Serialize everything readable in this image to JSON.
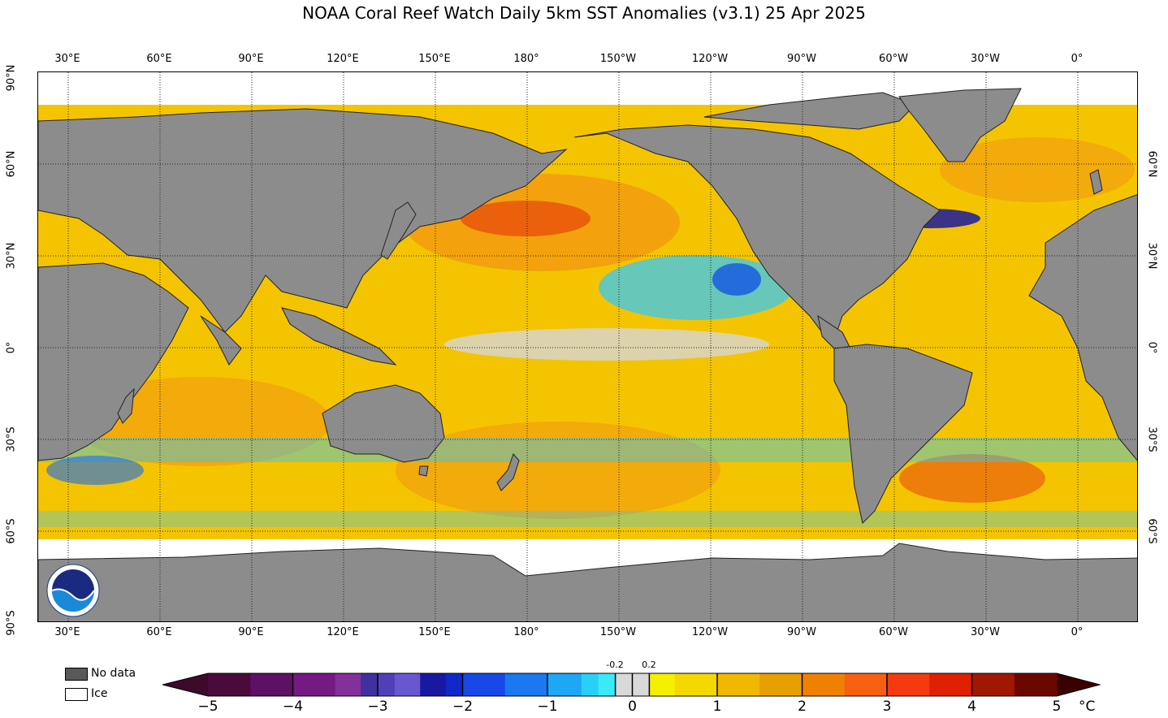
{
  "title": "NOAA Coral Reef Watch Daily 5km SST Anomalies  (v3.1)   25 Apr 2025",
  "lon_ticks": [
    "30°E",
    "60°E",
    "90°E",
    "120°E",
    "150°E",
    "180°",
    "150°W",
    "120°W",
    "90°W",
    "60°W",
    "30°W",
    "0°"
  ],
  "lat_ticks_left": [
    "90°N",
    "60°N",
    "30°N",
    "0°",
    "30°S",
    "60°S",
    "90°S"
  ],
  "lat_ticks_right": [
    "60°N",
    "30°N",
    "0°",
    "30°S",
    "60°S"
  ],
  "legend": {
    "nodata_label": "No data",
    "ice_label": "Ice",
    "nodata_color": "#595959",
    "ice_color": "#ffffff"
  },
  "colorbar": {
    "ticks": [
      "−5",
      "−4",
      "−3",
      "−2",
      "−1",
      "0",
      "1",
      "2",
      "3",
      "4",
      "5"
    ],
    "small_ticks": [
      "-0.2",
      "0.2"
    ],
    "unit": "°C",
    "colors": [
      "#3d0a2a",
      "#5a0f60",
      "#7a2a92",
      "#4a23a8",
      "#6a5ed6",
      "#1a1aa0",
      "#2a3ae0",
      "#1a78f0",
      "#3ab8f8",
      "#38e0f5",
      "#d6d6d6",
      "#f0f000",
      "#f7d000",
      "#f0b000",
      "#f58a00",
      "#f86a10",
      "#f63a00",
      "#d21a00",
      "#8a1200",
      "#3a0000"
    ],
    "bin_colors": {
      "m5_m4": "#7a1a7a",
      "m4_m3": "#5a40c8",
      "m3_m2": "#1010a8",
      "m2_m1": "#1a6cf0",
      "m1_m02": "#2ad4f5",
      "m02_02": "#d9d9d9",
      "p02_1": "#f4e800",
      "p1_2": "#f0b400",
      "p2_3": "#f57a00",
      "p3_4": "#f53a10",
      "p4_5": "#a81a00"
    }
  },
  "colors": {
    "land": "#8c8c8c",
    "ocean_base": "#f4c400"
  }
}
